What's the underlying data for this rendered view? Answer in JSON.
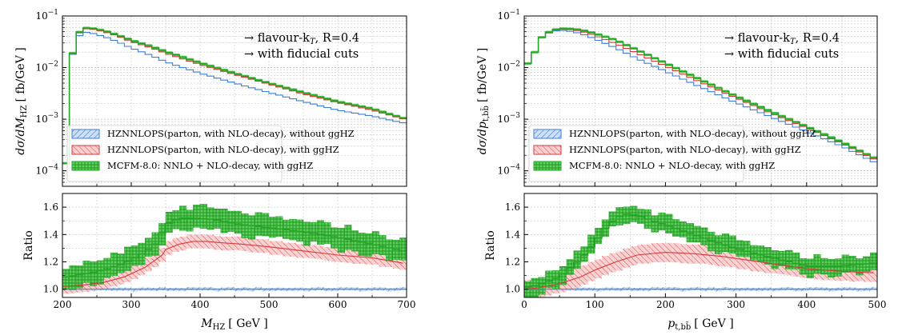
{
  "colors": {
    "blue": "#3d7fd6",
    "blue_fill": "#a9c9ee",
    "red": "#d9383a",
    "red_fill": "#f2b3b3",
    "green": "#23a623",
    "green_fill": "#3cc43c",
    "grid": "#b9b9b9"
  },
  "chart_data": [
    {
      "type": "line",
      "panel": "left",
      "annotations": [
        "→ flavour-k",
        "T",
        ", R=0.4",
        "→ with fiducial cuts"
      ],
      "legend": {
        "placement": "lower-left",
        "entries": [
          "HZNNLOPS(parton, with NLO-decay), without ggHZ",
          "HZNNLOPS(parton, with NLO-decay), with ggHZ",
          "MCFM-8.0: NNLO + NLO-decay, with ggHZ"
        ]
      },
      "xlabel": {
        "main": "M",
        "sub": "HZ",
        "unit": "[ GeV ]"
      },
      "top_ylabel": {
        "pre": "dσ/dM",
        "sub": "HZ",
        "unit": "[ fb/GeV ]"
      },
      "bottom_ylabel": "Ratio",
      "xlim": [
        200,
        700
      ],
      "xticks": [
        200,
        300,
        400,
        500,
        600,
        700
      ],
      "top_ylim_log10": [
        -4.3,
        -1
      ],
      "top_yticks": [
        {
          "exp": "−1",
          "lg": -1
        },
        {
          "exp": "−2",
          "lg": -2
        },
        {
          "exp": "−3",
          "lg": -3
        },
        {
          "exp": "−4",
          "lg": -4
        }
      ],
      "ratio_ylim": [
        0.94,
        1.7
      ],
      "ratio_yticks": [
        "1.0",
        "1.2",
        "1.4",
        "1.6"
      ],
      "grid": true,
      "series": {
        "blue_top": [
          [
            208,
            0.00014
          ],
          [
            212,
            0.012
          ],
          [
            220,
            0.036
          ],
          [
            230,
            0.048
          ],
          [
            240,
            0.048
          ],
          [
            260,
            0.04
          ],
          [
            280,
            0.032
          ],
          [
            300,
            0.024
          ],
          [
            330,
            0.017
          ],
          [
            350,
            0.013
          ],
          [
            370,
            0.0105
          ],
          [
            400,
            0.0078
          ],
          [
            450,
            0.005
          ],
          [
            500,
            0.0033
          ],
          [
            550,
            0.0022
          ],
          [
            600,
            0.0015
          ],
          [
            650,
            0.00115
          ],
          [
            695,
            0.00085
          ]
        ],
        "red_top": [
          [
            208,
            0.00014
          ],
          [
            212,
            0.012
          ],
          [
            220,
            0.04
          ],
          [
            230,
            0.056
          ],
          [
            240,
            0.057
          ],
          [
            260,
            0.05
          ],
          [
            280,
            0.041
          ],
          [
            300,
            0.032
          ],
          [
            330,
            0.024
          ],
          [
            350,
            0.019
          ],
          [
            370,
            0.0155
          ],
          [
            400,
            0.0115
          ],
          [
            450,
            0.0074
          ],
          [
            500,
            0.0048
          ],
          [
            550,
            0.0031
          ],
          [
            600,
            0.0021
          ],
          [
            650,
            0.0015
          ],
          [
            695,
            0.00102
          ]
        ],
        "green_top": [
          [
            208,
            0.00014
          ],
          [
            212,
            0.012
          ],
          [
            220,
            0.041
          ],
          [
            230,
            0.058
          ],
          [
            240,
            0.059
          ],
          [
            260,
            0.052
          ],
          [
            280,
            0.043
          ],
          [
            300,
            0.034
          ],
          [
            330,
            0.0255
          ],
          [
            350,
            0.0205
          ],
          [
            370,
            0.0168
          ],
          [
            400,
            0.0124
          ],
          [
            450,
            0.0078
          ],
          [
            500,
            0.005
          ],
          [
            550,
            0.0033
          ],
          [
            600,
            0.0022
          ],
          [
            650,
            0.0016
          ],
          [
            695,
            0.00105
          ]
        ],
        "blue_ratio": [
          [
            200,
            1.0
          ],
          [
            700,
            1.0
          ]
        ],
        "red_ratio": [
          [
            200,
            1.02
          ],
          [
            230,
            1.03
          ],
          [
            260,
            1.05
          ],
          [
            290,
            1.09
          ],
          [
            320,
            1.16
          ],
          [
            345,
            1.25
          ],
          [
            350,
            1.29
          ],
          [
            370,
            1.33
          ],
          [
            390,
            1.35
          ],
          [
            410,
            1.35
          ],
          [
            430,
            1.34
          ],
          [
            460,
            1.33
          ],
          [
            500,
            1.31
          ],
          [
            550,
            1.28
          ],
          [
            600,
            1.25
          ],
          [
            650,
            1.23
          ],
          [
            695,
            1.19
          ]
        ],
        "green_ratio": [
          [
            205,
            1.09
          ],
          [
            230,
            1.11
          ],
          [
            260,
            1.14
          ],
          [
            290,
            1.19
          ],
          [
            320,
            1.27
          ],
          [
            340,
            1.35
          ],
          [
            350,
            1.47
          ],
          [
            370,
            1.52
          ],
          [
            390,
            1.52
          ],
          [
            420,
            1.51
          ],
          [
            450,
            1.48
          ],
          [
            500,
            1.45
          ],
          [
            550,
            1.42
          ],
          [
            600,
            1.38
          ],
          [
            650,
            1.33
          ],
          [
            695,
            1.28
          ]
        ],
        "blue_band": 0.012,
        "red_band": 0.05,
        "green_band": 0.09
      }
    },
    {
      "type": "line",
      "panel": "right",
      "annotations": [
        "→ flavour-k",
        "T",
        ", R=0.4",
        "→ with fiducial cuts"
      ],
      "legend": {
        "placement": "lower-left",
        "entries": [
          "HZNNLOPS(parton, with NLO-decay), without ggHZ",
          "HZNNLOPS(parton, with NLO-decay), with ggHZ",
          "MCFM-8.0: NNLO + NLO-decay, with ggHZ"
        ]
      },
      "xlabel": {
        "main": "p",
        "sub": "t,bb̄",
        "unit": "[ GeV ]"
      },
      "top_ylabel": {
        "pre": "dσ/dp",
        "sub": "t,bb̄",
        "unit": "[ fb/GeV ]"
      },
      "bottom_ylabel": "Ratio",
      "xlim": [
        0,
        500
      ],
      "xticks": [
        0,
        100,
        200,
        300,
        400,
        500
      ],
      "top_ylim_log10": [
        -4.3,
        -1
      ],
      "top_yticks": [
        {
          "exp": "−1",
          "lg": -1
        },
        {
          "exp": "−2",
          "lg": -2
        },
        {
          "exp": "−3",
          "lg": -3
        },
        {
          "exp": "−4",
          "lg": -4
        }
      ],
      "ratio_ylim": [
        0.94,
        1.7
      ],
      "ratio_yticks": [
        "1.0",
        "1.2",
        "1.4",
        "1.6"
      ],
      "grid": true,
      "series": {
        "blue_top": [
          [
            0,
            0.012
          ],
          [
            10,
            0.012
          ],
          [
            20,
            0.033
          ],
          [
            30,
            0.044
          ],
          [
            40,
            0.05
          ],
          [
            50,
            0.053
          ],
          [
            60,
            0.052
          ],
          [
            80,
            0.046
          ],
          [
            100,
            0.036
          ],
          [
            130,
            0.024
          ],
          [
            160,
            0.015
          ],
          [
            200,
            0.0085
          ],
          [
            250,
            0.0042
          ],
          [
            300,
            0.0021
          ],
          [
            350,
            0.0011
          ],
          [
            400,
            0.00058
          ],
          [
            450,
            0.0003
          ],
          [
            495,
            0.00015
          ]
        ],
        "red_top": [
          [
            0,
            0.012
          ],
          [
            10,
            0.012
          ],
          [
            20,
            0.033
          ],
          [
            30,
            0.045
          ],
          [
            40,
            0.052
          ],
          [
            50,
            0.056
          ],
          [
            60,
            0.056
          ],
          [
            80,
            0.051
          ],
          [
            100,
            0.042
          ],
          [
            130,
            0.029
          ],
          [
            160,
            0.019
          ],
          [
            200,
            0.0108
          ],
          [
            250,
            0.0052
          ],
          [
            300,
            0.0026
          ],
          [
            350,
            0.0013
          ],
          [
            400,
            0.00068
          ],
          [
            450,
            0.00034
          ],
          [
            495,
            0.00017
          ]
        ],
        "green_top": [
          [
            0,
            0.012
          ],
          [
            10,
            0.012
          ],
          [
            20,
            0.033
          ],
          [
            30,
            0.045
          ],
          [
            40,
            0.053
          ],
          [
            50,
            0.057
          ],
          [
            60,
            0.057
          ],
          [
            80,
            0.054
          ],
          [
            100,
            0.046
          ],
          [
            130,
            0.034
          ],
          [
            160,
            0.022
          ],
          [
            200,
            0.0122
          ],
          [
            250,
            0.0058
          ],
          [
            300,
            0.0028
          ],
          [
            350,
            0.0014
          ],
          [
            400,
            0.00072
          ],
          [
            450,
            0.00036
          ],
          [
            495,
            0.00018
          ]
        ],
        "blue_ratio": [
          [
            0,
            1.0
          ],
          [
            500,
            1.0
          ]
        ],
        "red_ratio": [
          [
            0,
            1.0
          ],
          [
            20,
            1.01
          ],
          [
            50,
            1.04
          ],
          [
            80,
            1.09
          ],
          [
            100,
            1.14
          ],
          [
            130,
            1.2
          ],
          [
            160,
            1.25
          ],
          [
            200,
            1.27
          ],
          [
            240,
            1.26
          ],
          [
            280,
            1.24
          ],
          [
            320,
            1.21
          ],
          [
            360,
            1.18
          ],
          [
            400,
            1.15
          ],
          [
            450,
            1.13
          ],
          [
            495,
            1.12
          ]
        ],
        "green_ratio": [
          [
            0,
            1.01
          ],
          [
            20,
            1.03
          ],
          [
            50,
            1.09
          ],
          [
            80,
            1.22
          ],
          [
            100,
            1.34
          ],
          [
            120,
            1.48
          ],
          [
            140,
            1.55
          ],
          [
            160,
            1.54
          ],
          [
            200,
            1.47
          ],
          [
            240,
            1.4
          ],
          [
            280,
            1.33
          ],
          [
            320,
            1.27
          ],
          [
            360,
            1.22
          ],
          [
            400,
            1.17
          ],
          [
            450,
            1.17
          ],
          [
            495,
            1.19
          ]
        ],
        "blue_band": 0.012,
        "red_band": 0.07,
        "green_band": 0.07
      }
    }
  ]
}
